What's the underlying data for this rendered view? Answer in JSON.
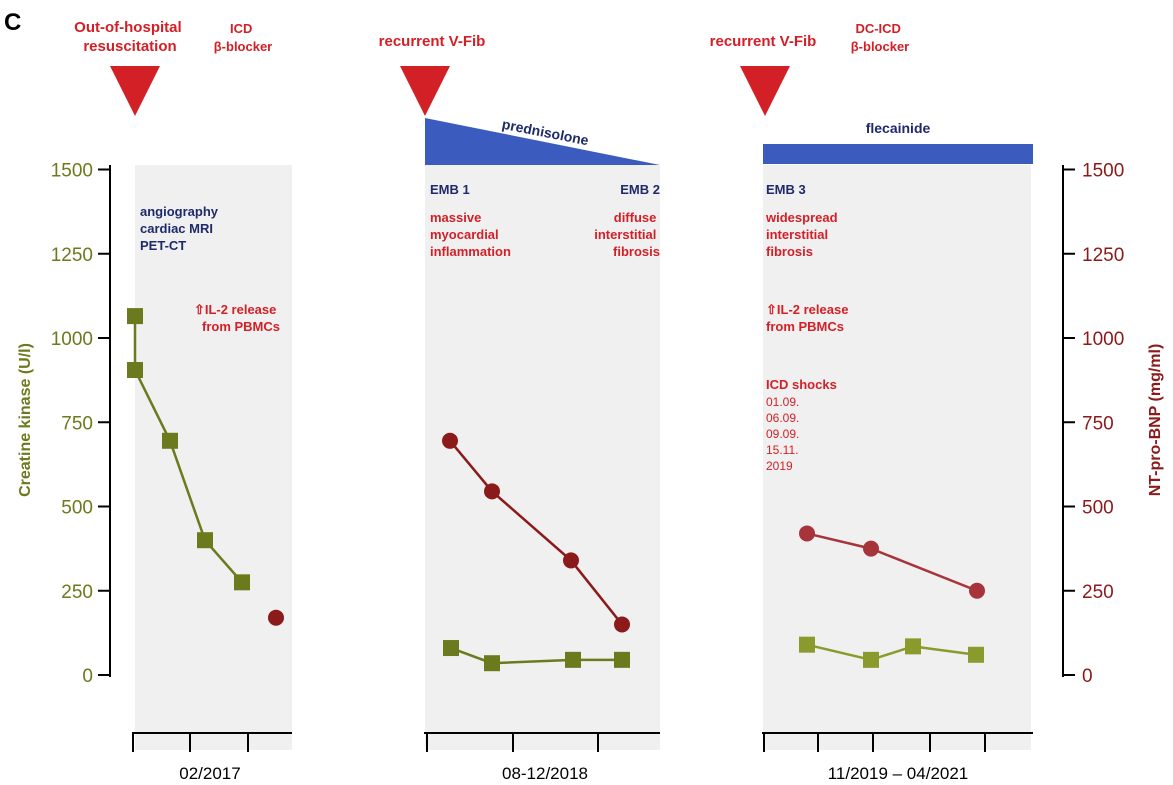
{
  "panel_label": "C",
  "colors": {
    "event_red": "#d32027",
    "navy": "#1f2a6b",
    "ck_olive": "#6b7a1c",
    "ck_olive_light": "#8a9a2c",
    "bnp_darkred": "#8b1a1a",
    "bnp_red_light": "#a8343b",
    "therapy_blue": "#3b5bbf",
    "panel_gray": "#f0f0f0"
  },
  "events": {
    "p1_event": [
      "Out-of-hospital",
      "resuscitation"
    ],
    "p1_therapy": [
      "ICD",
      "β-blocker"
    ],
    "p2_event": [
      "recurrent V-Fib"
    ],
    "p3_event": [
      "recurrent V-Fib"
    ],
    "p3_therapy": [
      "DC-ICD",
      "β-blocker"
    ],
    "prednisolone": "prednisolone",
    "flecainide": "flecainide"
  },
  "annotations": {
    "p1_exams": [
      "angiography",
      "cardiac MRI",
      "PET-CT"
    ],
    "p1_il2": [
      "⇧IL-2 release",
      "from PBMCs"
    ],
    "emb1": "EMB 1",
    "emb1_text": [
      "massive",
      "myocardial",
      "inflammation"
    ],
    "emb2": "EMB 2",
    "emb2_text": [
      "diffuse",
      "interstitial",
      "fibrosis"
    ],
    "emb3": "EMB 3",
    "emb3_text": [
      "widespread",
      "interstitial",
      "fibrosis"
    ],
    "p3_il2": [
      "⇧IL-2 release",
      "from PBMCs"
    ],
    "icd_shocks_title": "ICD shocks",
    "icd_shocks_dates": [
      "01.09.",
      "06.09.",
      "09.09.",
      "15.11.",
      "2019"
    ]
  },
  "chart_data": {
    "type": "line",
    "left_axis": {
      "label": "Creatine kinase (U/l)",
      "ticks": [
        "0",
        "250",
        "500",
        "750",
        "1000",
        "1250",
        "1500"
      ],
      "range": [
        0,
        1500
      ]
    },
    "right_axis": {
      "label": "NT-pro-BNP (mg/ml)",
      "ticks": [
        "0",
        "250",
        "500",
        "750",
        "1000",
        "1250",
        "1500"
      ],
      "range": [
        0,
        1500
      ]
    },
    "periods": [
      {
        "label": "02/2017",
        "ck": [
          1065,
          905,
          695,
          400,
          275
        ],
        "bnp": [
          170
        ]
      },
      {
        "label": "08-12/2018",
        "ck": [
          80,
          35,
          45,
          45
        ],
        "bnp": [
          695,
          545,
          340,
          150
        ]
      },
      {
        "label": "11/2019 – 04/2021",
        "ck": [
          90,
          45,
          85,
          60
        ],
        "bnp": [
          420,
          375,
          250
        ]
      }
    ]
  }
}
